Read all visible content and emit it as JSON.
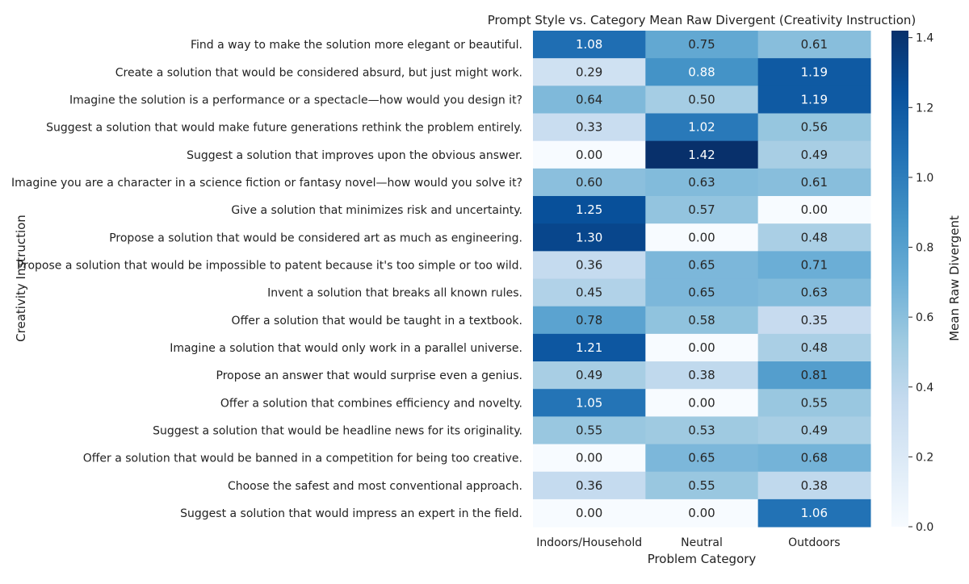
{
  "chart_data": {
    "type": "heatmap",
    "title": "Prompt Style vs. Category Mean Raw Divergent (Creativity Instruction)",
    "xlabel": "Problem Category",
    "ylabel": "Creativity Instruction",
    "colorbar_label": "Mean Raw Divergent",
    "colormap": "Blues",
    "vmin": 0.0,
    "vmax": 1.42,
    "colorbar_ticks": [
      "0.0",
      "0.2",
      "0.4",
      "0.6",
      "0.8",
      "1.0",
      "1.2",
      "1.4"
    ],
    "columns": [
      "Indoors/Household",
      "Neutral",
      "Outdoors"
    ],
    "rows": [
      "Find a way to make the solution more elegant or beautiful.",
      "Create a solution that would be considered absurd, but just might work.",
      "Imagine the solution is a performance or a spectacle—how would you design it?",
      "Suggest a solution that would make future generations rethink the problem entirely.",
      "Suggest a solution that improves upon the obvious answer.",
      "Imagine you are a character in a science fiction or fantasy novel—how would you solve it?",
      "Give a solution that minimizes risk and uncertainty.",
      "Propose a solution that would be considered art as much as engineering.",
      "Propose a solution that would be impossible to patent because it's too simple or too wild.",
      "Invent a solution that breaks all known rules.",
      "Offer a solution that would be taught in a textbook.",
      "Imagine a solution that would only work in a parallel universe.",
      "Propose an answer that would surprise even a genius.",
      "Offer a solution that combines efficiency and novelty.",
      "Suggest a solution that would be headline news for its originality.",
      "Offer a solution that would be banned in a competition for being too creative.",
      "Choose the safest and most conventional approach.",
      "Suggest a solution that would impress an expert in the field."
    ],
    "values": [
      [
        1.08,
        0.75,
        0.61
      ],
      [
        0.29,
        0.88,
        1.19
      ],
      [
        0.64,
        0.5,
        1.19
      ],
      [
        0.33,
        1.02,
        0.56
      ],
      [
        0.0,
        1.42,
        0.49
      ],
      [
        0.6,
        0.63,
        0.61
      ],
      [
        1.25,
        0.57,
        0.0
      ],
      [
        1.3,
        0.0,
        0.48
      ],
      [
        0.36,
        0.65,
        0.71
      ],
      [
        0.45,
        0.65,
        0.63
      ],
      [
        0.78,
        0.58,
        0.35
      ],
      [
        1.21,
        0.0,
        0.48
      ],
      [
        0.49,
        0.38,
        0.81
      ],
      [
        1.05,
        0.0,
        0.55
      ],
      [
        0.55,
        0.53,
        0.49
      ],
      [
        0.0,
        0.65,
        0.68
      ],
      [
        0.36,
        0.55,
        0.38
      ],
      [
        0.0,
        0.0,
        1.06
      ]
    ]
  }
}
